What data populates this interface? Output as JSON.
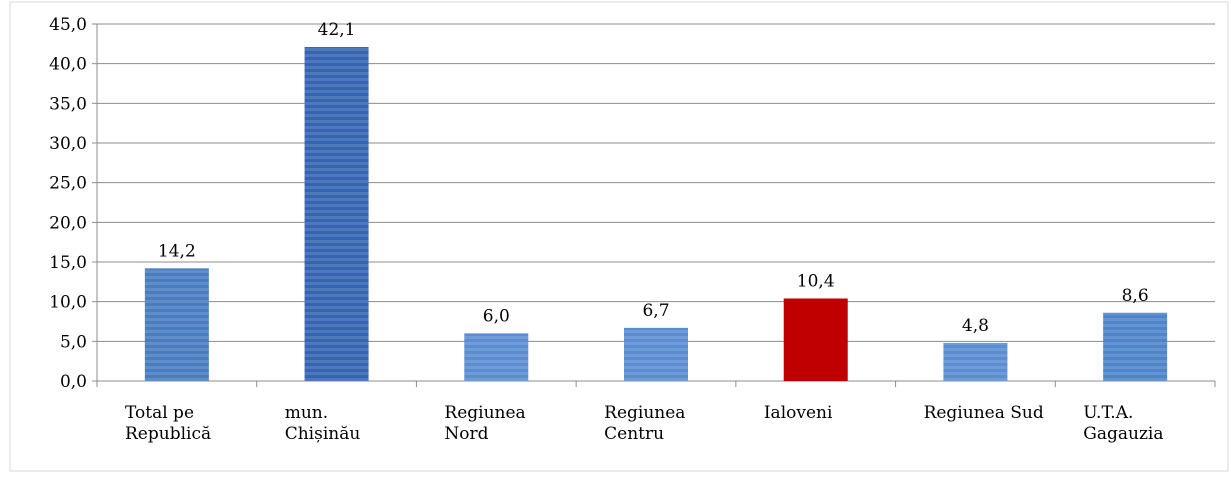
{
  "chart_data": {
    "type": "bar",
    "categories": [
      "Total pe\nRepublică",
      "mun.\nChișinău",
      "Regiunea\nNord",
      "Regiunea\nCentru",
      "Ialoveni",
      "Regiunea Sud",
      "U.T.A.\nGagauzia"
    ],
    "values": [
      14.2,
      42.1,
      6.0,
      6.7,
      10.4,
      4.8,
      8.6
    ],
    "value_labels": [
      "14,2",
      "42,1",
      "6,0",
      "6,7",
      "10,4",
      "4,8",
      "8,6"
    ],
    "colors": [
      "#4a7cc0",
      "#3565b0",
      "#5b8dd0",
      "#5b8dd0",
      "#c00000",
      "#5b8dd0",
      "#4f85c8"
    ],
    "ylim": [
      0,
      45
    ],
    "yticks": [
      {
        "value": 0,
        "label": "0,0"
      },
      {
        "value": 5,
        "label": "5,0"
      },
      {
        "value": 10,
        "label": "10,0"
      },
      {
        "value": 15,
        "label": "15,0"
      },
      {
        "value": 20,
        "label": "20,0"
      },
      {
        "value": 25,
        "label": "25,0"
      },
      {
        "value": 30,
        "label": "30,0"
      },
      {
        "value": 35,
        "label": "35,0"
      },
      {
        "value": 40,
        "label": "40,0"
      },
      {
        "value": 45,
        "label": "45,0"
      }
    ],
    "grid": true
  }
}
